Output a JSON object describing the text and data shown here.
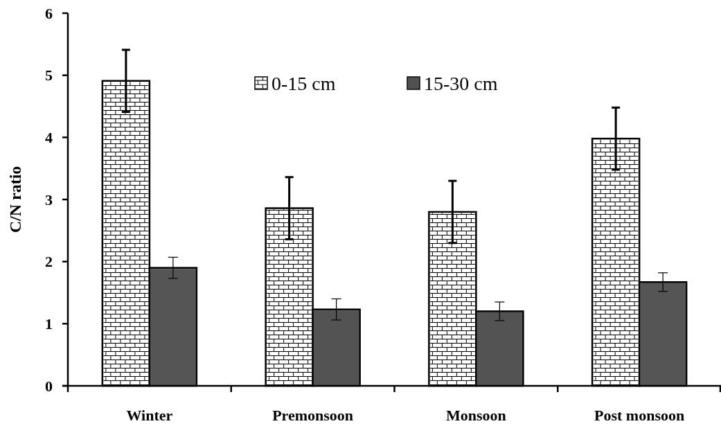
{
  "chart_data": {
    "type": "bar",
    "ylabel": "C/N ratio",
    "categories": [
      "Winter",
      "Premonsoon",
      "Monsoon",
      "Post monsoon"
    ],
    "series": [
      {
        "name": "0-15 cm",
        "color": "#ffffff",
        "values": [
          4.91,
          2.86,
          2.8,
          3.98
        ],
        "errors": [
          0.5,
          0.5,
          0.5,
          0.5
        ]
      },
      {
        "name": "15-30 cm",
        "color": "#808080",
        "values": [
          1.9,
          1.23,
          1.2,
          1.67
        ],
        "errors": [
          0.17,
          0.17,
          0.15,
          0.15
        ]
      }
    ],
    "ylim": [
      0,
      6
    ],
    "yticks": [
      0,
      1,
      2,
      3,
      4,
      5,
      6
    ],
    "grid": false,
    "legend": "top"
  }
}
